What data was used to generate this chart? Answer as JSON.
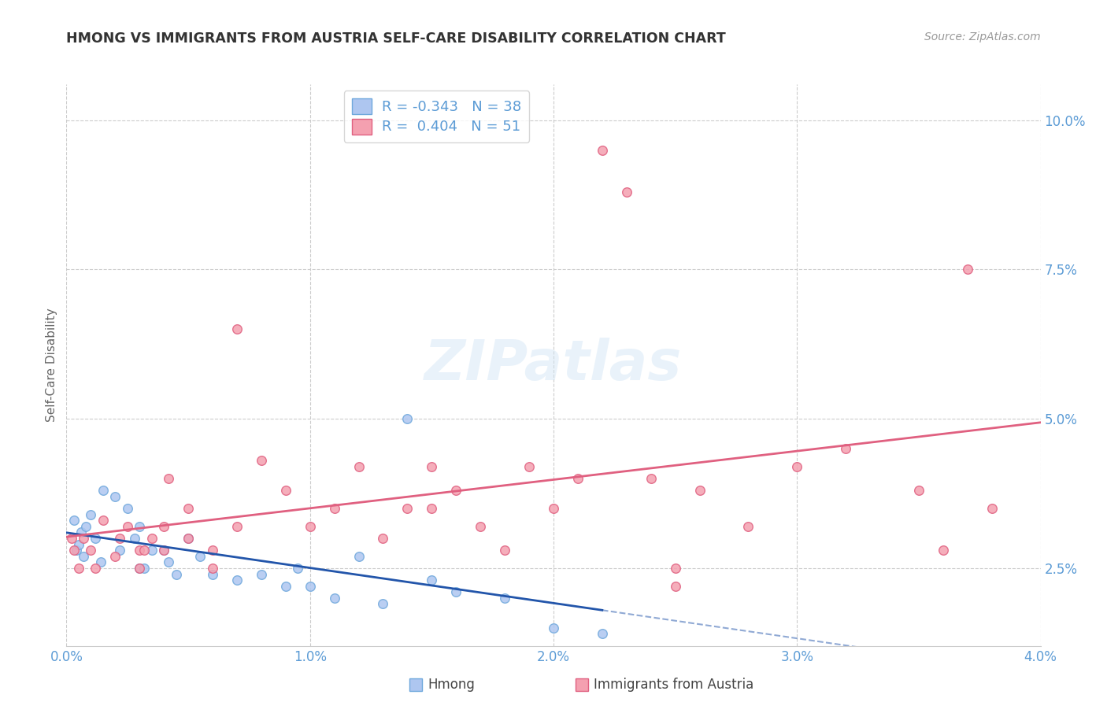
{
  "title": "HMONG VS IMMIGRANTS FROM AUSTRIA SELF-CARE DISABILITY CORRELATION CHART",
  "source": "Source: ZipAtlas.com",
  "ylabel": "Self-Care Disability",
  "watermark": "ZIPatlas",
  "legend_entries": [
    {
      "label": "R = -0.343   N = 38",
      "color": "#aec6f0"
    },
    {
      "label": "R =  0.404   N = 51",
      "color": "#f4a0b0"
    }
  ],
  "x_ticks": [
    "0.0%",
    "1.0%",
    "2.0%",
    "3.0%",
    "4.0%"
  ],
  "x_tick_vals": [
    0.0,
    0.01,
    0.02,
    0.03,
    0.04
  ],
  "y_ticks_right": [
    "2.5%",
    "5.0%",
    "7.5%",
    "10.0%"
  ],
  "y_tick_vals": [
    0.025,
    0.05,
    0.075,
    0.1
  ],
  "xlim": [
    0.0,
    0.04
  ],
  "ylim": [
    0.012,
    0.106
  ],
  "background_color": "#ffffff",
  "grid_color": "#cccccc",
  "title_color": "#333333",
  "axis_label_color": "#5b9bd5",
  "hmong_color": "#6fa8dc",
  "austria_color": "#e06080",
  "hmong_scatter_color": "#aec6f0",
  "austria_scatter_color": "#f4a0b0",
  "hmong_line_color": "#2255aa",
  "austria_line_color": "#e06080",
  "hmong_x": [
    0.0003,
    0.0004,
    0.0005,
    0.0006,
    0.0007,
    0.0008,
    0.001,
    0.0012,
    0.0014,
    0.0015,
    0.002,
    0.0022,
    0.0025,
    0.0028,
    0.003,
    0.003,
    0.0032,
    0.0035,
    0.004,
    0.0042,
    0.0045,
    0.005,
    0.0055,
    0.006,
    0.007,
    0.008,
    0.009,
    0.0095,
    0.01,
    0.011,
    0.012,
    0.013,
    0.014,
    0.015,
    0.016,
    0.018,
    0.02,
    0.022
  ],
  "hmong_y": [
    0.033,
    0.028,
    0.029,
    0.031,
    0.027,
    0.032,
    0.034,
    0.03,
    0.026,
    0.038,
    0.037,
    0.028,
    0.035,
    0.03,
    0.032,
    0.025,
    0.025,
    0.028,
    0.028,
    0.026,
    0.024,
    0.03,
    0.027,
    0.024,
    0.023,
    0.024,
    0.022,
    0.025,
    0.022,
    0.02,
    0.027,
    0.019,
    0.05,
    0.023,
    0.021,
    0.02,
    0.015,
    0.014
  ],
  "austria_x": [
    0.0002,
    0.0003,
    0.0005,
    0.0007,
    0.001,
    0.0012,
    0.0015,
    0.002,
    0.0022,
    0.0025,
    0.003,
    0.003,
    0.0032,
    0.0035,
    0.004,
    0.004,
    0.0042,
    0.005,
    0.005,
    0.006,
    0.006,
    0.007,
    0.007,
    0.008,
    0.009,
    0.01,
    0.011,
    0.012,
    0.013,
    0.014,
    0.015,
    0.015,
    0.016,
    0.017,
    0.018,
    0.019,
    0.02,
    0.021,
    0.022,
    0.023,
    0.024,
    0.025,
    0.025,
    0.026,
    0.028,
    0.03,
    0.032,
    0.035,
    0.036,
    0.037,
    0.038
  ],
  "austria_y": [
    0.03,
    0.028,
    0.025,
    0.03,
    0.028,
    0.025,
    0.033,
    0.027,
    0.03,
    0.032,
    0.025,
    0.028,
    0.028,
    0.03,
    0.032,
    0.028,
    0.04,
    0.03,
    0.035,
    0.025,
    0.028,
    0.032,
    0.065,
    0.043,
    0.038,
    0.032,
    0.035,
    0.042,
    0.03,
    0.035,
    0.035,
    0.042,
    0.038,
    0.032,
    0.028,
    0.042,
    0.035,
    0.04,
    0.095,
    0.088,
    0.04,
    0.025,
    0.022,
    0.038,
    0.032,
    0.042,
    0.045,
    0.038,
    0.028,
    0.075,
    0.035
  ],
  "legend_label_hmong": "Hmong",
  "legend_label_austria": "Immigrants from Austria"
}
